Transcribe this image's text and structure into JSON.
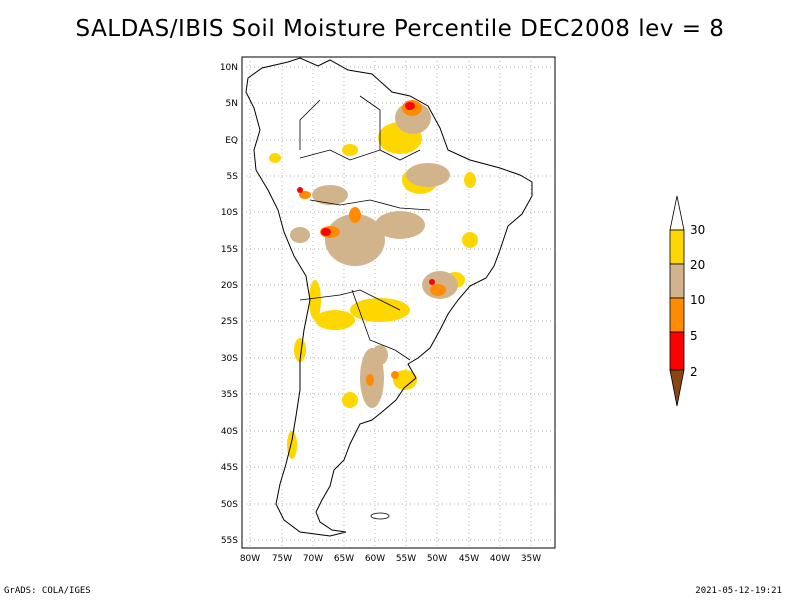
{
  "title": "SALDAS/IBIS Soil Moisture Percentile DEC2008 lev = 8",
  "map": {
    "lon_range": [
      -80,
      -30
    ],
    "lat_range": [
      -55,
      10
    ],
    "lat_ticks": [
      "10N",
      "5N",
      "EQ",
      "5S",
      "10S",
      "15S",
      "20S",
      "25S",
      "30S",
      "35S",
      "40S",
      "45S",
      "50S",
      "55S"
    ],
    "lon_ticks": [
      "80W",
      "75W",
      "70W",
      "65W",
      "60W",
      "55W",
      "50W",
      "45W",
      "40W",
      "35W"
    ],
    "grid": true
  },
  "colorbar": {
    "levels": [
      "30",
      "20",
      "10",
      "5",
      "2"
    ],
    "colors": {
      "above_30": "#ffffff",
      "20_30": "#ffd700",
      "10_20": "#d2b48c",
      "5_10": "#ff8c00",
      "2_5": "#ff0000",
      "below_2": "#8b4513"
    }
  },
  "footer": {
    "left": "GrADS: COLA/IGES",
    "right": "2021-05-12-19:21"
  }
}
